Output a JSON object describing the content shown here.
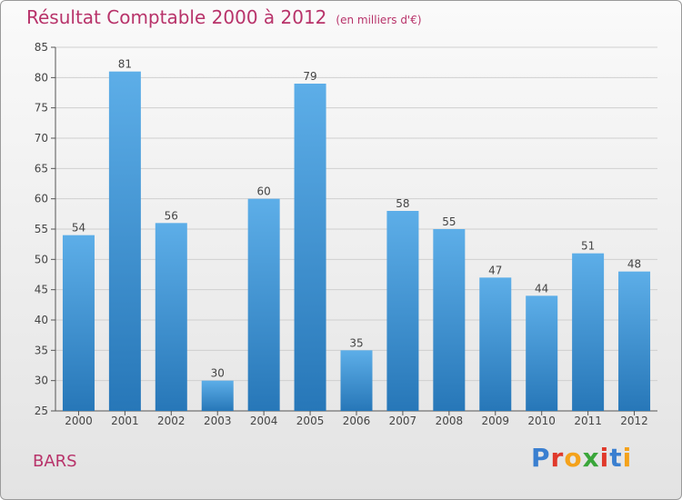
{
  "header": {
    "title": "Résultat Comptable 2000 à 2012",
    "subtitle": "(en milliers d'€)"
  },
  "commune": "BARS",
  "logo": {
    "text": "Proxiti"
  },
  "colors": {
    "title": "#b8336a",
    "bar_top": "#5daee8",
    "bar_bottom": "#2777b8"
  },
  "chart_data": {
    "type": "bar",
    "title": "Résultat Comptable 2000 à 2012",
    "unit": "(en milliers d'€)",
    "categories": [
      "2000",
      "2001",
      "2002",
      "2003",
      "2004",
      "2005",
      "2006",
      "2007",
      "2008",
      "2009",
      "2010",
      "2011",
      "2012"
    ],
    "values": [
      54,
      81,
      56,
      30,
      60,
      79,
      35,
      58,
      55,
      47,
      44,
      51,
      48
    ],
    "ylim": [
      25,
      85
    ],
    "yticks": [
      25,
      30,
      35,
      40,
      45,
      50,
      55,
      60,
      65,
      70,
      75,
      80,
      85
    ],
    "grid": true
  }
}
